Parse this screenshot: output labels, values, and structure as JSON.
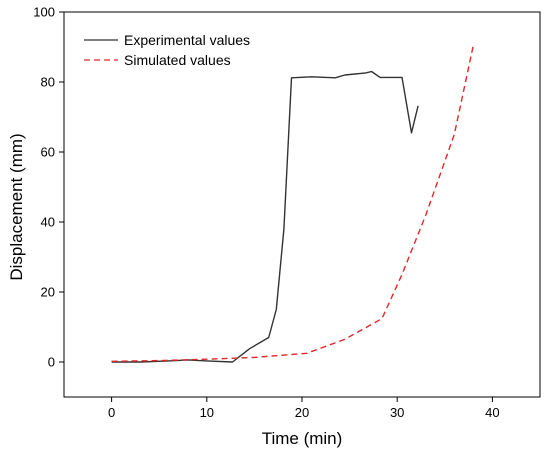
{
  "chart_data": {
    "type": "line",
    "title": "",
    "xlabel": "Time (min)",
    "ylabel": "Displacement (mm)",
    "xlim": [
      -5,
      45
    ],
    "ylim": [
      -10,
      100
    ],
    "xticks": [
      0,
      10,
      20,
      30,
      40
    ],
    "yticks": [
      0,
      20,
      40,
      60,
      80,
      100
    ],
    "legend_position": "top-left",
    "series": [
      {
        "name": "Experimental values",
        "color": "#333333",
        "style": "solid",
        "points": [
          [
            0,
            0
          ],
          [
            3,
            0
          ],
          [
            6,
            0.3
          ],
          [
            8,
            0.6
          ],
          [
            10,
            0.3
          ],
          [
            12.7,
            0
          ],
          [
            14.5,
            3.8
          ],
          [
            16.5,
            7
          ],
          [
            17.3,
            15
          ],
          [
            18.1,
            38
          ],
          [
            18.9,
            81.2
          ],
          [
            21,
            81.5
          ],
          [
            23.5,
            81.2
          ],
          [
            24.5,
            82
          ],
          [
            26.7,
            82.6
          ],
          [
            27.3,
            83
          ],
          [
            28.2,
            81.3
          ],
          [
            30.5,
            81.3
          ],
          [
            31.5,
            65.5
          ],
          [
            32.2,
            73.2
          ]
        ]
      },
      {
        "name": "Simulated values",
        "color": "#e32727",
        "style": "dashed",
        "points": [
          [
            0,
            0.2
          ],
          [
            5,
            0.4
          ],
          [
            10,
            0.8
          ],
          [
            15,
            1.3
          ],
          [
            20.5,
            2.5
          ],
          [
            24.5,
            6.5
          ],
          [
            28.4,
            12.4
          ],
          [
            30.5,
            25
          ],
          [
            33,
            42
          ],
          [
            36,
            65
          ],
          [
            38,
            90.6
          ]
        ]
      }
    ]
  }
}
